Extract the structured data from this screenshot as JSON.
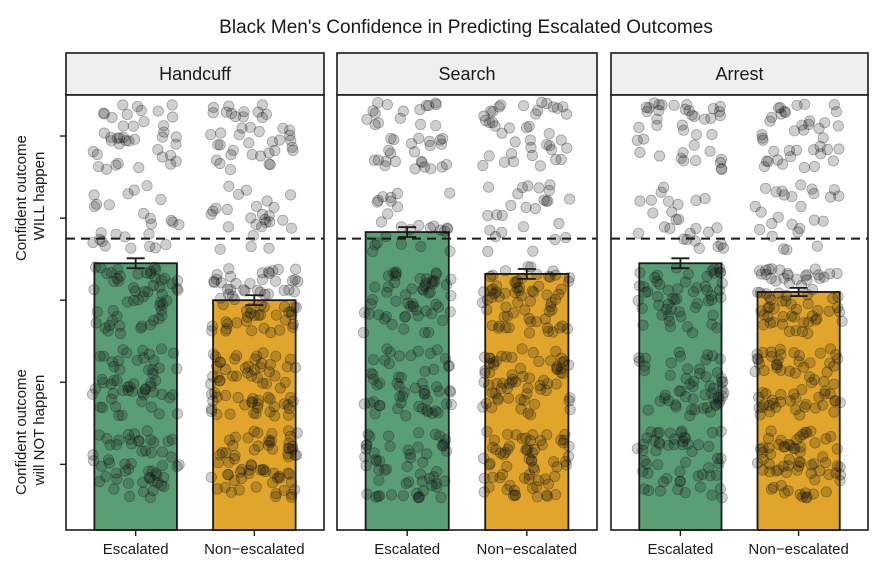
{
  "chart_data": {
    "type": "bar",
    "title": "Black Men's Confidence in Predicting Escalated Outcomes",
    "ylabel_top": [
      "Confident outcome",
      "WILL happen"
    ],
    "ylabel_bottom": [
      "Confident outcome",
      "will NOT happen"
    ],
    "categories": [
      "Escalated",
      "Non−escalated"
    ],
    "panels": [
      {
        "name": "Handcuff",
        "values": [
          3.45,
          3.0
        ],
        "errors": [
          0.06,
          0.06
        ]
      },
      {
        "name": "Search",
        "values": [
          3.83,
          3.32
        ],
        "errors": [
          0.06,
          0.06
        ]
      },
      {
        "name": "Arrest",
        "values": [
          3.45,
          3.1
        ],
        "errors": [
          0.06,
          0.05
        ]
      }
    ],
    "ylim": [
      0.2,
      5.5
    ],
    "reference_line": 3.75,
    "jitter_levels": [
      1,
      2,
      3,
      4,
      5,
      6
    ],
    "colors": {
      "escalated": "#5a9e76",
      "non_escalated": "#e0a52a",
      "points": "#111111",
      "strip": "#efefef",
      "border": "#1a1a1a"
    }
  }
}
